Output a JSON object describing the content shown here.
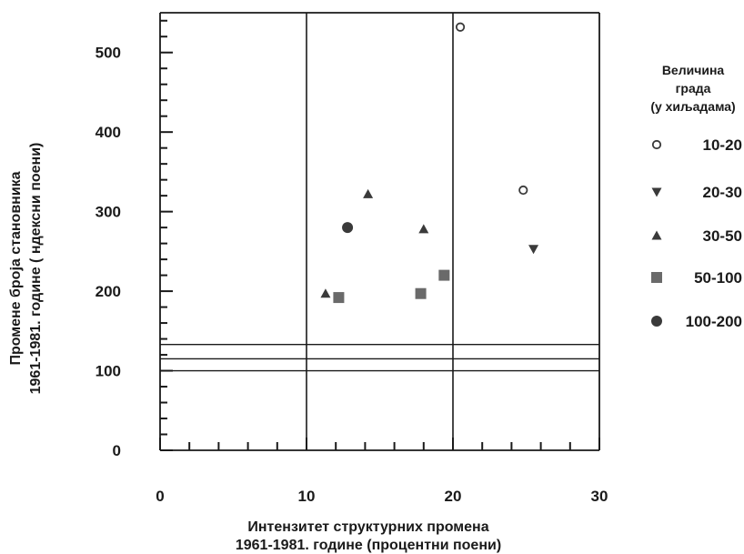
{
  "chart_data": {
    "type": "scatter",
    "title": "",
    "xlabel": [
      "Интензитет структурних промена",
      "1961-1981. године (процентни поени)"
    ],
    "ylabel": [
      "Промене броја становника",
      "1961-1981. године (  ндексни поени)"
    ],
    "xlim": [
      0,
      30
    ],
    "ylim": [
      0,
      550
    ],
    "x_ticks": [
      0,
      10,
      20,
      30
    ],
    "y_ticks": [
      0,
      100,
      200,
      300,
      400,
      500
    ],
    "x_tick_labels": [
      "0",
      "10",
      "20",
      "30"
    ],
    "y_tick_labels": [
      "0",
      "100",
      "200",
      "300",
      "400",
      "500"
    ],
    "reference_lines": {
      "vertical": [
        10,
        20
      ],
      "horizontal": [
        100,
        115,
        133
      ]
    },
    "legend": {
      "title": [
        "Величина",
        "града",
        "(у хиљадама)"
      ],
      "placement": "right"
    },
    "series": [
      {
        "name": "10-20",
        "marker": "circle-open",
        "points": [
          [
            20.5,
            532
          ],
          [
            24.8,
            327
          ]
        ]
      },
      {
        "name": "20-30",
        "marker": "triangle-down",
        "points": [
          [
            25.5,
            253
          ]
        ]
      },
      {
        "name": "30-50",
        "marker": "triangle-up",
        "points": [
          [
            14.2,
            322
          ],
          [
            11.3,
            197
          ],
          [
            18.0,
            278
          ]
        ]
      },
      {
        "name": "50-100",
        "marker": "square",
        "points": [
          [
            12.2,
            192
          ],
          [
            17.8,
            197
          ],
          [
            19.4,
            220
          ]
        ]
      },
      {
        "name": "100-200",
        "marker": "circle-filled",
        "points": [
          [
            12.8,
            280
          ]
        ]
      }
    ],
    "marker_color": "#3a3a3a"
  }
}
